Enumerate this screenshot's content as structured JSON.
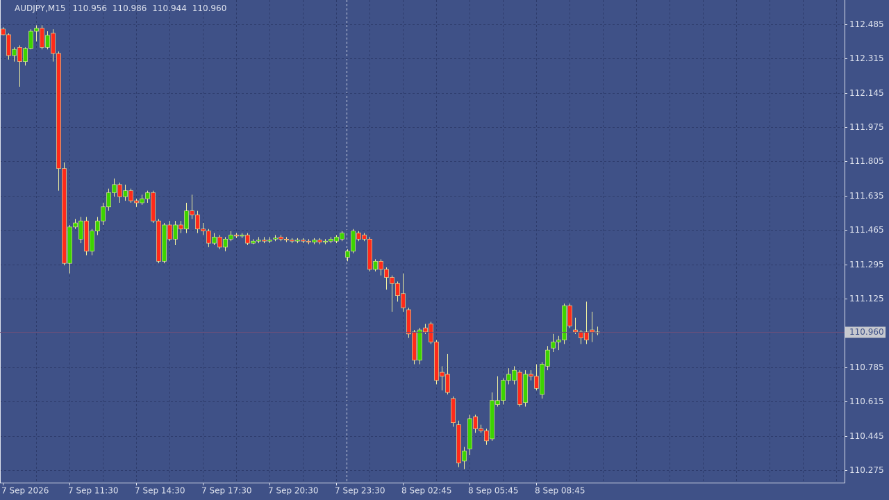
{
  "chart_data": {
    "type": "candlestick",
    "title": "AUDJPY,M15",
    "ohlc_text": [
      "110.956",
      "110.986",
      "110.944",
      "110.960"
    ],
    "x": [
      "7 Sep 2026",
      null,
      null,
      null,
      null,
      null,
      null,
      null,
      null,
      null,
      null,
      null,
      "7 Sep 11:30",
      null,
      null,
      null,
      null,
      null,
      null,
      null,
      null,
      null,
      null,
      null,
      "7 Sep 14:30",
      null,
      null,
      null,
      null,
      null,
      null,
      null,
      null,
      null,
      null,
      null,
      "7 Sep 17:30",
      null,
      null,
      null,
      null,
      null,
      null,
      null,
      null,
      null,
      null,
      null,
      "7 Sep 20:30",
      null,
      null,
      null,
      null,
      null,
      null,
      null,
      null,
      null,
      null,
      null,
      "7 Sep 23:30",
      null,
      null,
      null,
      null,
      null,
      null,
      null,
      null,
      null,
      null,
      null,
      "8 Sep 02:45",
      null,
      null,
      null,
      null,
      null,
      null,
      null,
      null,
      null,
      null,
      null,
      "8 Sep 05:45",
      null,
      null,
      null,
      null,
      null,
      null,
      null,
      null,
      null,
      null,
      null,
      "8 Sep 08:45",
      null,
      null,
      null,
      null,
      null,
      null,
      null,
      null,
      null,
      null,
      null
    ],
    "open": [
      112.461,
      112.433,
      112.33,
      112.37,
      112.3,
      112.365,
      112.45,
      112.465,
      112.37,
      112.44,
      112.34,
      111.77,
      111.3,
      111.48,
      111.42,
      111.51,
      111.36,
      111.46,
      111.51,
      111.58,
      111.65,
      111.69,
      111.63,
      111.66,
      111.61,
      111.6,
      111.62,
      111.65,
      111.51,
      111.31,
      111.49,
      111.42,
      111.49,
      111.47,
      111.56,
      111.54,
      111.47,
      111.46,
      111.4,
      111.43,
      111.38,
      111.42,
      111.44,
      111.435,
      111.44,
      111.4,
      111.41,
      111.415,
      111.41,
      111.42,
      111.43,
      111.42,
      111.415,
      111.41,
      111.415,
      111.41,
      111.405,
      111.415,
      111.405,
      111.41,
      111.41,
      111.42,
      111.33,
      111.36,
      111.45,
      111.44,
      111.42,
      111.27,
      111.31,
      111.27,
      111.23,
      111.2,
      111.15,
      111.07,
      110.96,
      110.82,
      110.98,
      111.0,
      110.91,
      110.76,
      110.75,
      110.63,
      110.5,
      110.32,
      110.38,
      110.54,
      110.48,
      110.47,
      110.43,
      110.6,
      110.62,
      110.72,
      110.72,
      110.76,
      110.61,
      110.75,
      110.74,
      110.65,
      110.79,
      110.88,
      110.91,
      110.92,
      111.09,
      110.97,
      110.96,
      110.96,
      110.97,
      110.956
    ],
    "high": [
      112.47,
      112.44,
      112.37,
      112.38,
      112.37,
      112.46,
      112.48,
      112.48,
      112.45,
      112.46,
      112.35,
      111.8,
      111.49,
      111.52,
      111.53,
      111.53,
      111.47,
      111.53,
      111.6,
      111.67,
      111.72,
      111.7,
      111.69,
      111.67,
      111.62,
      111.64,
      111.66,
      111.66,
      111.52,
      111.5,
      111.51,
      111.51,
      111.51,
      111.6,
      111.64,
      111.56,
      111.5,
      111.47,
      111.45,
      111.44,
      111.43,
      111.46,
      111.45,
      111.45,
      111.45,
      111.42,
      111.43,
      111.43,
      111.43,
      111.44,
      111.44,
      111.43,
      111.425,
      111.425,
      111.425,
      111.42,
      111.425,
      111.425,
      111.42,
      111.43,
      111.44,
      111.46,
      111.37,
      111.47,
      111.46,
      111.45,
      111.43,
      111.32,
      111.32,
      111.28,
      111.24,
      111.21,
      111.25,
      111.08,
      110.97,
      110.98,
      111.0,
      111.01,
      110.92,
      110.79,
      110.85,
      110.64,
      110.52,
      110.39,
      110.55,
      110.55,
      110.5,
      110.48,
      110.66,
      110.74,
      110.73,
      110.78,
      110.79,
      110.77,
      110.77,
      110.77,
      110.8,
      110.81,
      110.89,
      110.95,
      110.94,
      111.1,
      111.1,
      111.03,
      110.97,
      111.11,
      111.06,
      110.986
    ],
    "low": [
      112.43,
      112.31,
      112.3,
      112.175,
      112.28,
      112.36,
      112.4,
      112.36,
      112.36,
      112.3,
      111.66,
      111.29,
      111.25,
      111.47,
      111.4,
      111.34,
      111.34,
      111.44,
      111.49,
      111.56,
      111.63,
      111.6,
      111.61,
      111.6,
      111.58,
      111.59,
      111.6,
      111.5,
      111.3,
      111.3,
      111.41,
      111.39,
      111.45,
      111.45,
      111.52,
      111.45,
      111.44,
      111.38,
      111.39,
      111.37,
      111.36,
      111.41,
      111.425,
      111.425,
      111.39,
      111.395,
      111.4,
      111.4,
      111.4,
      111.41,
      111.41,
      111.405,
      111.4,
      111.4,
      111.4,
      111.395,
      111.395,
      111.395,
      111.395,
      111.4,
      111.4,
      111.41,
      111.31,
      111.35,
      111.41,
      111.41,
      111.26,
      111.26,
      111.24,
      111.17,
      111.06,
      111.11,
      111.06,
      110.93,
      110.8,
      110.8,
      110.95,
      110.9,
      110.7,
      110.67,
      110.65,
      110.49,
      110.29,
      110.28,
      110.35,
      110.46,
      110.46,
      110.4,
      110.42,
      110.59,
      110.6,
      110.7,
      110.7,
      110.59,
      110.59,
      110.72,
      110.67,
      110.63,
      110.77,
      110.86,
      110.87,
      110.9,
      110.98,
      110.95,
      110.9,
      110.9,
      110.91,
      110.944
    ],
    "close": [
      112.433,
      112.33,
      112.36,
      112.3,
      112.365,
      112.45,
      112.465,
      112.37,
      112.43,
      112.34,
      111.77,
      111.3,
      111.48,
      111.5,
      111.51,
      111.36,
      111.46,
      111.51,
      111.58,
      111.65,
      111.69,
      111.63,
      111.66,
      111.61,
      111.6,
      111.62,
      111.65,
      111.51,
      111.31,
      111.49,
      111.42,
      111.49,
      111.47,
      111.56,
      111.54,
      111.47,
      111.46,
      111.4,
      111.43,
      111.38,
      111.42,
      111.44,
      111.435,
      111.44,
      111.4,
      111.41,
      111.415,
      111.41,
      111.415,
      111.425,
      111.42,
      111.415,
      111.41,
      111.415,
      111.41,
      111.405,
      111.415,
      111.405,
      111.41,
      111.42,
      111.43,
      111.45,
      111.36,
      111.46,
      111.42,
      111.42,
      111.27,
      111.31,
      111.27,
      111.23,
      111.2,
      111.14,
      111.08,
      110.95,
      110.82,
      110.97,
      110.96,
      110.91,
      110.72,
      110.74,
      110.66,
      110.51,
      110.31,
      110.37,
      110.53,
      110.48,
      110.47,
      110.42,
      110.62,
      110.62,
      110.72,
      110.75,
      110.77,
      110.6,
      110.75,
      110.74,
      110.68,
      110.8,
      110.87,
      110.91,
      110.92,
      111.09,
      110.99,
      110.96,
      110.93,
      110.92,
      110.96,
      110.96
    ],
    "up_color": "#3cd400",
    "down_color": "#ff2a1a",
    "doji_color": "#f2f2a0",
    "current_price": {
      "value": 110.96,
      "label": "110.960"
    },
    "ylim": [
      110.213,
      112.605
    ],
    "yticks": [
      110.275,
      110.445,
      110.615,
      110.785,
      111.125,
      111.295,
      111.465,
      111.635,
      111.805,
      111.975,
      112.145,
      112.315,
      112.485
    ],
    "grid": true
  }
}
